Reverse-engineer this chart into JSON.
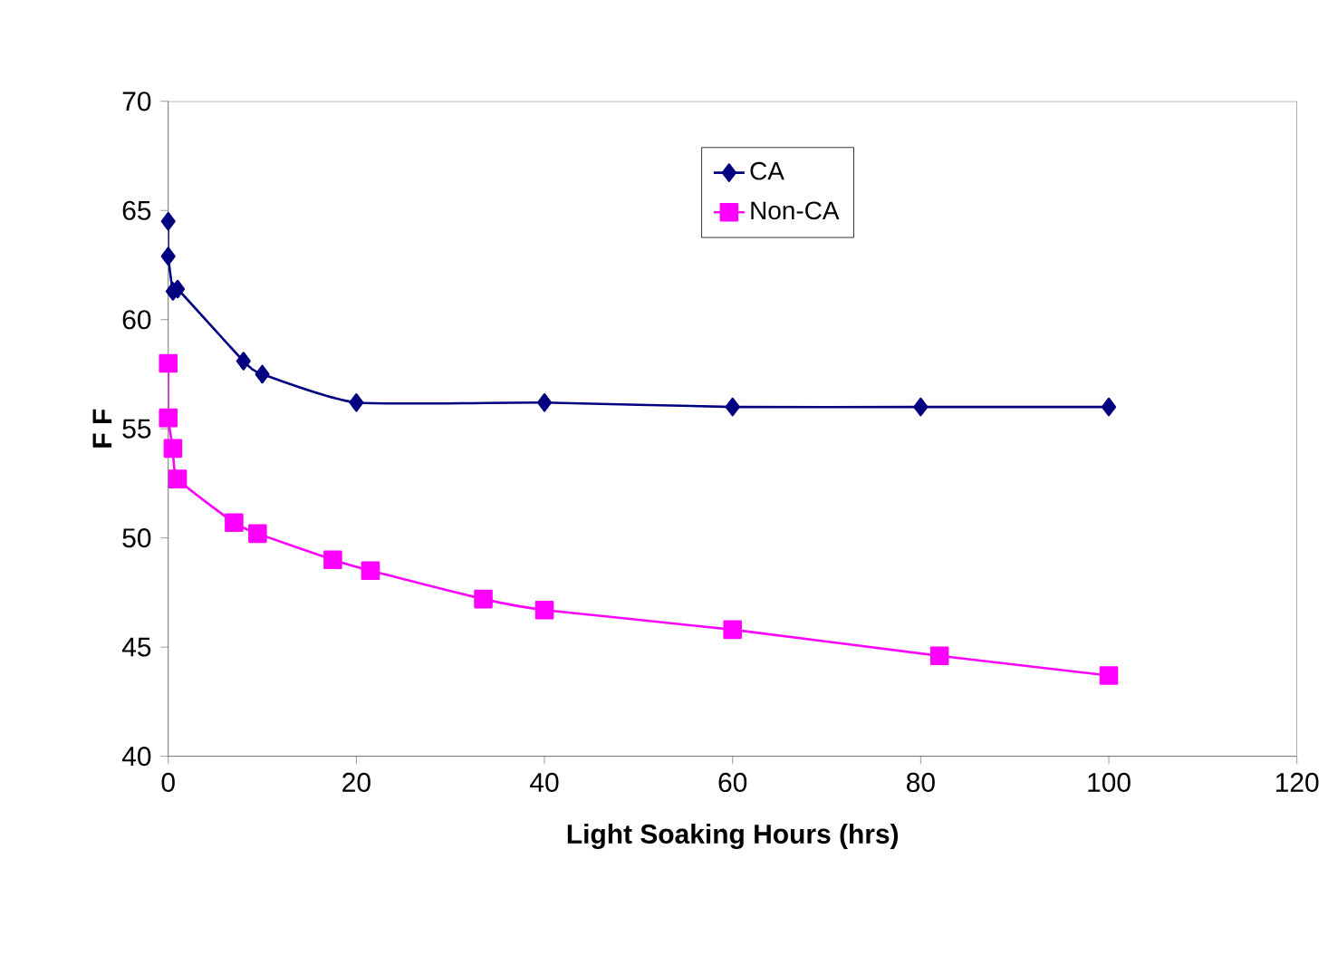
{
  "chart_data": {
    "type": "line",
    "xlabel": "Light Soaking Hours (hrs)",
    "ylabel": "F F",
    "xlim": [
      0,
      120
    ],
    "xticks": [
      0,
      20,
      40,
      60,
      80,
      100,
      120
    ],
    "ylim": [
      40,
      70
    ],
    "yticks": [
      40,
      45,
      50,
      55,
      60,
      65,
      70
    ],
    "grid": false,
    "legend": "top",
    "line_style": "solid",
    "series": [
      {
        "name": "CA",
        "color": "#000080",
        "marker": "diamond",
        "x": [
          0,
          0,
          0.5,
          1,
          8,
          10,
          20,
          40,
          60,
          80,
          100
        ],
        "values": [
          64.5,
          62.9,
          61.3,
          61.4,
          58.1,
          57.5,
          56.2,
          56.2,
          56.0,
          56.0,
          56.0
        ]
      },
      {
        "name": "Non-CA",
        "color": "#ff00ff",
        "marker": "square",
        "x": [
          0,
          0,
          0.5,
          1,
          7,
          9.5,
          17.5,
          21.5,
          33.5,
          40,
          60,
          82,
          100
        ],
        "values": [
          58.0,
          55.5,
          54.1,
          52.7,
          50.7,
          50.2,
          49.0,
          48.5,
          47.2,
          46.7,
          45.8,
          44.6,
          43.7
        ]
      }
    ]
  }
}
